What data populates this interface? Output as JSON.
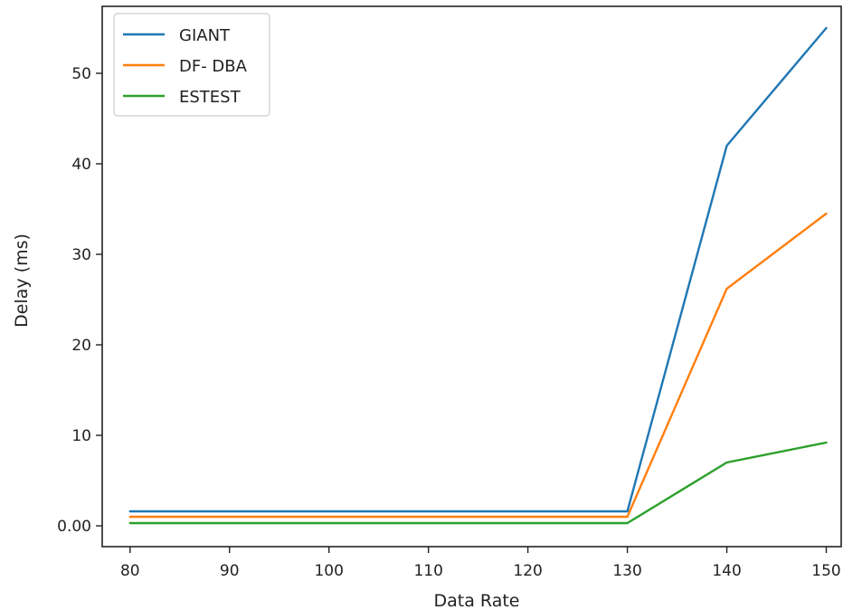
{
  "chart_data": {
    "type": "line",
    "title": "",
    "xlabel": "Data Rate",
    "ylabel": "Delay (ms)",
    "x": [
      80,
      130,
      140,
      150
    ],
    "xticks": [
      80,
      90,
      100,
      110,
      120,
      130,
      140,
      150
    ],
    "xtick_labels": [
      "80",
      "90",
      "100",
      "110",
      "120",
      "130",
      "140",
      "150"
    ],
    "yticks": [
      0,
      10,
      20,
      30,
      40,
      50
    ],
    "ytick_labels": [
      "0.00",
      "10",
      "20",
      "30",
      "40",
      "50"
    ],
    "xlim": [
      77.2,
      151.5
    ],
    "ylim": [
      -2.3,
      57.4
    ],
    "grid": false,
    "legend_position": "top-left",
    "series": [
      {
        "name": "GIANT",
        "color": "#1f77b4",
        "values": [
          1.6,
          1.6,
          42,
          55
        ]
      },
      {
        "name": "DF- DBA",
        "color": "#ff7f0e",
        "values": [
          1.0,
          1.0,
          26.2,
          34.5
        ]
      },
      {
        "name": "ESTEST",
        "color": "#2ca02c",
        "values": [
          0.3,
          0.3,
          7.0,
          9.2
        ]
      }
    ]
  }
}
